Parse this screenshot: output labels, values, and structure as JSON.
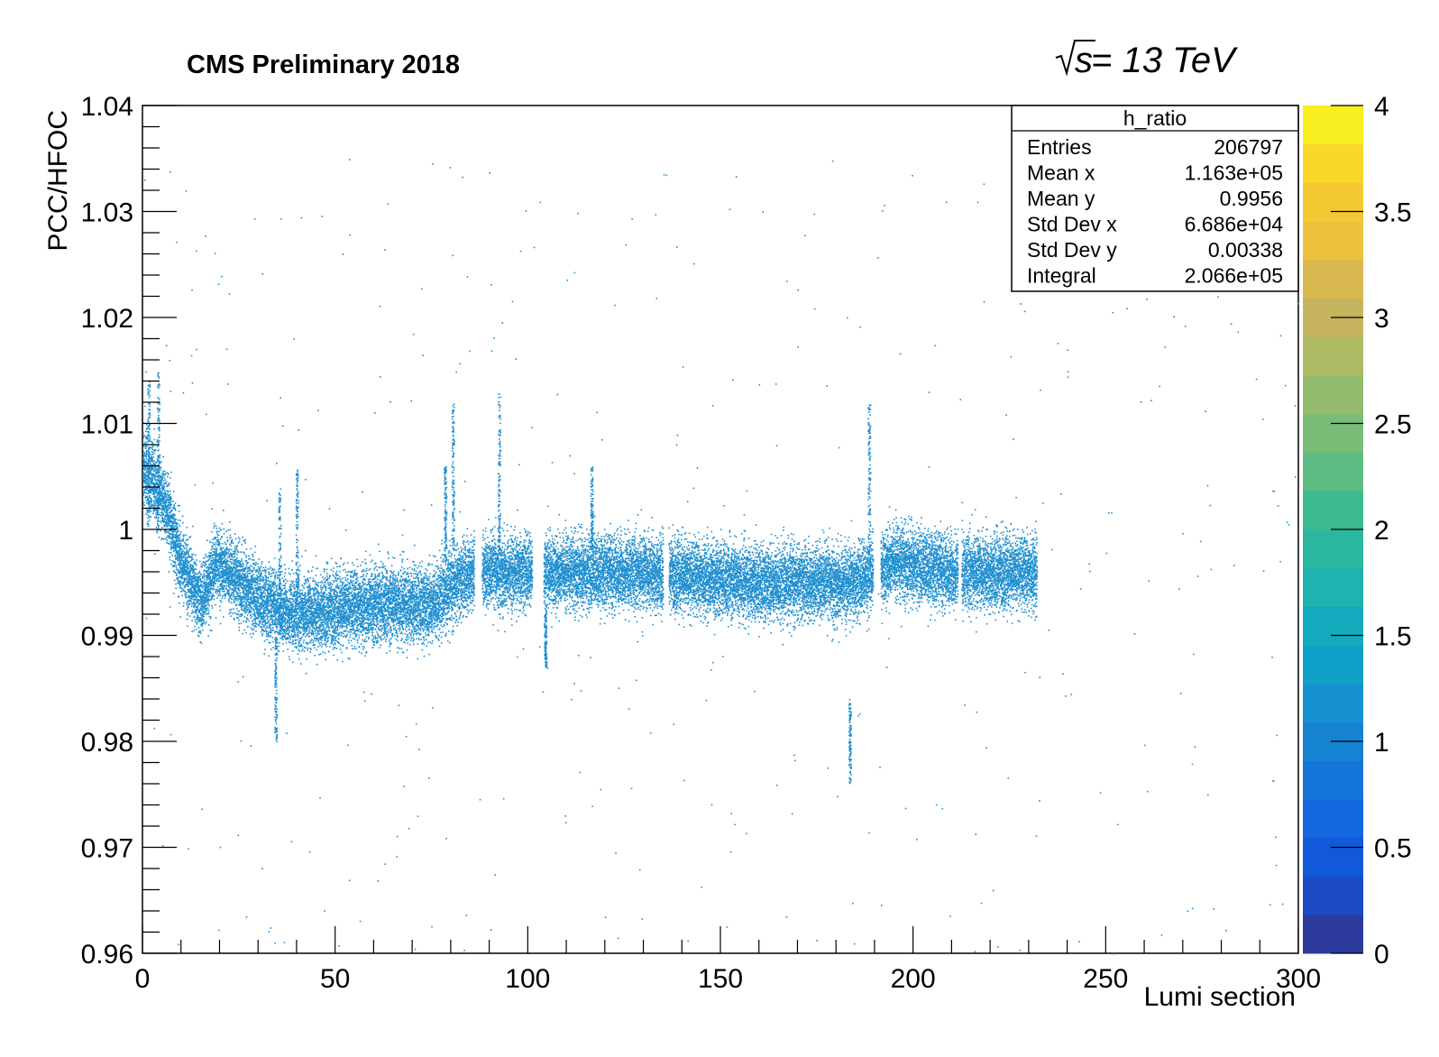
{
  "header": {
    "experiment_label": "CMS Preliminary 2018",
    "energy_label_sqrt": "√s",
    "energy_label_value": " = 13 TeV"
  },
  "stats_box": {
    "title": "h_ratio",
    "rows": [
      {
        "label": "Entries",
        "value": "206797"
      },
      {
        "label": "Mean x",
        "value": "1.163e+05"
      },
      {
        "label": "Mean y",
        "value": "0.9956"
      },
      {
        "label": "Std Dev x",
        "value": "6.686e+04"
      },
      {
        "label": "Std Dev y",
        "value": "0.00338"
      },
      {
        "label": "Integral",
        "value": "2.066e+05"
      }
    ]
  },
  "chart_data": {
    "type": "scatter",
    "title": "CMS Preliminary 2018",
    "xlabel": "Lumi section",
    "ylabel": "PCC/HFOC",
    "xlim": [
      0,
      300
    ],
    "ylim": [
      0.96,
      1.04
    ],
    "x_ticks": [
      "0",
      "50",
      "100",
      "150",
      "200",
      "250",
      "300"
    ],
    "y_ticks": [
      "0.96",
      "0.97",
      "0.98",
      "0.99",
      "1",
      "1.01",
      "1.02",
      "1.03",
      "1.04"
    ],
    "grid": false,
    "legend": "none",
    "marker_color": "#1f8fd0",
    "colorbar": {
      "min": 0,
      "max": 4,
      "tick_labels": [
        "0",
        "0.5",
        "1",
        "1.5",
        "2",
        "2.5",
        "3",
        "3.5",
        "4"
      ],
      "palette": [
        "#2c3a9c",
        "#1a4bc5",
        "#1159d8",
        "#1466dc",
        "#1475d8",
        "#1682d2",
        "#1590d0",
        "#0fa0c8",
        "#14aabe",
        "#20b2ae",
        "#2cb8a0",
        "#3cba92",
        "#5cbc84",
        "#78bc78",
        "#94bc6e",
        "#aeba64",
        "#c6b45e",
        "#dab850",
        "#ecc13e",
        "#f4c832",
        "#f8d62a",
        "#f8ee20"
      ]
    },
    "band": {
      "description": "dense scatter band of per-lumisection ratios",
      "envelope": [
        {
          "x": 0,
          "center": 1.006,
          "spread": 0.0035
        },
        {
          "x": 5,
          "center": 1.003,
          "spread": 0.003
        },
        {
          "x": 10,
          "center": 0.997,
          "spread": 0.003
        },
        {
          "x": 15,
          "center": 0.993,
          "spread": 0.0028
        },
        {
          "x": 19,
          "center": 0.997,
          "spread": 0.003
        },
        {
          "x": 25,
          "center": 0.995,
          "spread": 0.003
        },
        {
          "x": 32,
          "center": 0.993,
          "spread": 0.003
        },
        {
          "x": 40,
          "center": 0.992,
          "spread": 0.003
        },
        {
          "x": 60,
          "center": 0.993,
          "spread": 0.0032
        },
        {
          "x": 75,
          "center": 0.993,
          "spread": 0.003
        },
        {
          "x": 85,
          "center": 0.996,
          "spread": 0.003
        },
        {
          "x": 100,
          "center": 0.996,
          "spread": 0.003
        },
        {
          "x": 130,
          "center": 0.996,
          "spread": 0.003
        },
        {
          "x": 160,
          "center": 0.995,
          "spread": 0.003
        },
        {
          "x": 185,
          "center": 0.995,
          "spread": 0.003
        },
        {
          "x": 195,
          "center": 0.997,
          "spread": 0.003
        },
        {
          "x": 210,
          "center": 0.996,
          "spread": 0.003
        },
        {
          "x": 232,
          "center": 0.996,
          "spread": 0.003
        }
      ],
      "gaps": [
        [
          86,
          88
        ],
        [
          101,
          104
        ],
        [
          135,
          136.5
        ],
        [
          189.5,
          191.5
        ],
        [
          211.5,
          212.5
        ]
      ],
      "spikes": [
        {
          "x": 1.5,
          "ymin": 1.0,
          "ymax": 1.014
        },
        {
          "x": 4,
          "ymin": 1.0,
          "ymax": 1.015
        },
        {
          "x": 34.5,
          "ymin": 0.98,
          "ymax": 0.99
        },
        {
          "x": 35.5,
          "ymin": 0.99,
          "ymax": 1.004
        },
        {
          "x": 40,
          "ymin": 0.993,
          "ymax": 1.006
        },
        {
          "x": 78.5,
          "ymin": 0.997,
          "ymax": 1.006
        },
        {
          "x": 80.5,
          "ymin": 0.998,
          "ymax": 1.012
        },
        {
          "x": 92.5,
          "ymin": 0.998,
          "ymax": 1.013
        },
        {
          "x": 104.5,
          "ymin": 0.987,
          "ymax": 0.993
        },
        {
          "x": 116.5,
          "ymin": 0.998,
          "ymax": 1.006
        },
        {
          "x": 183.5,
          "ymin": 0.976,
          "ymax": 0.984
        },
        {
          "x": 188.5,
          "ymin": 0.997,
          "ymax": 1.012
        }
      ]
    }
  }
}
